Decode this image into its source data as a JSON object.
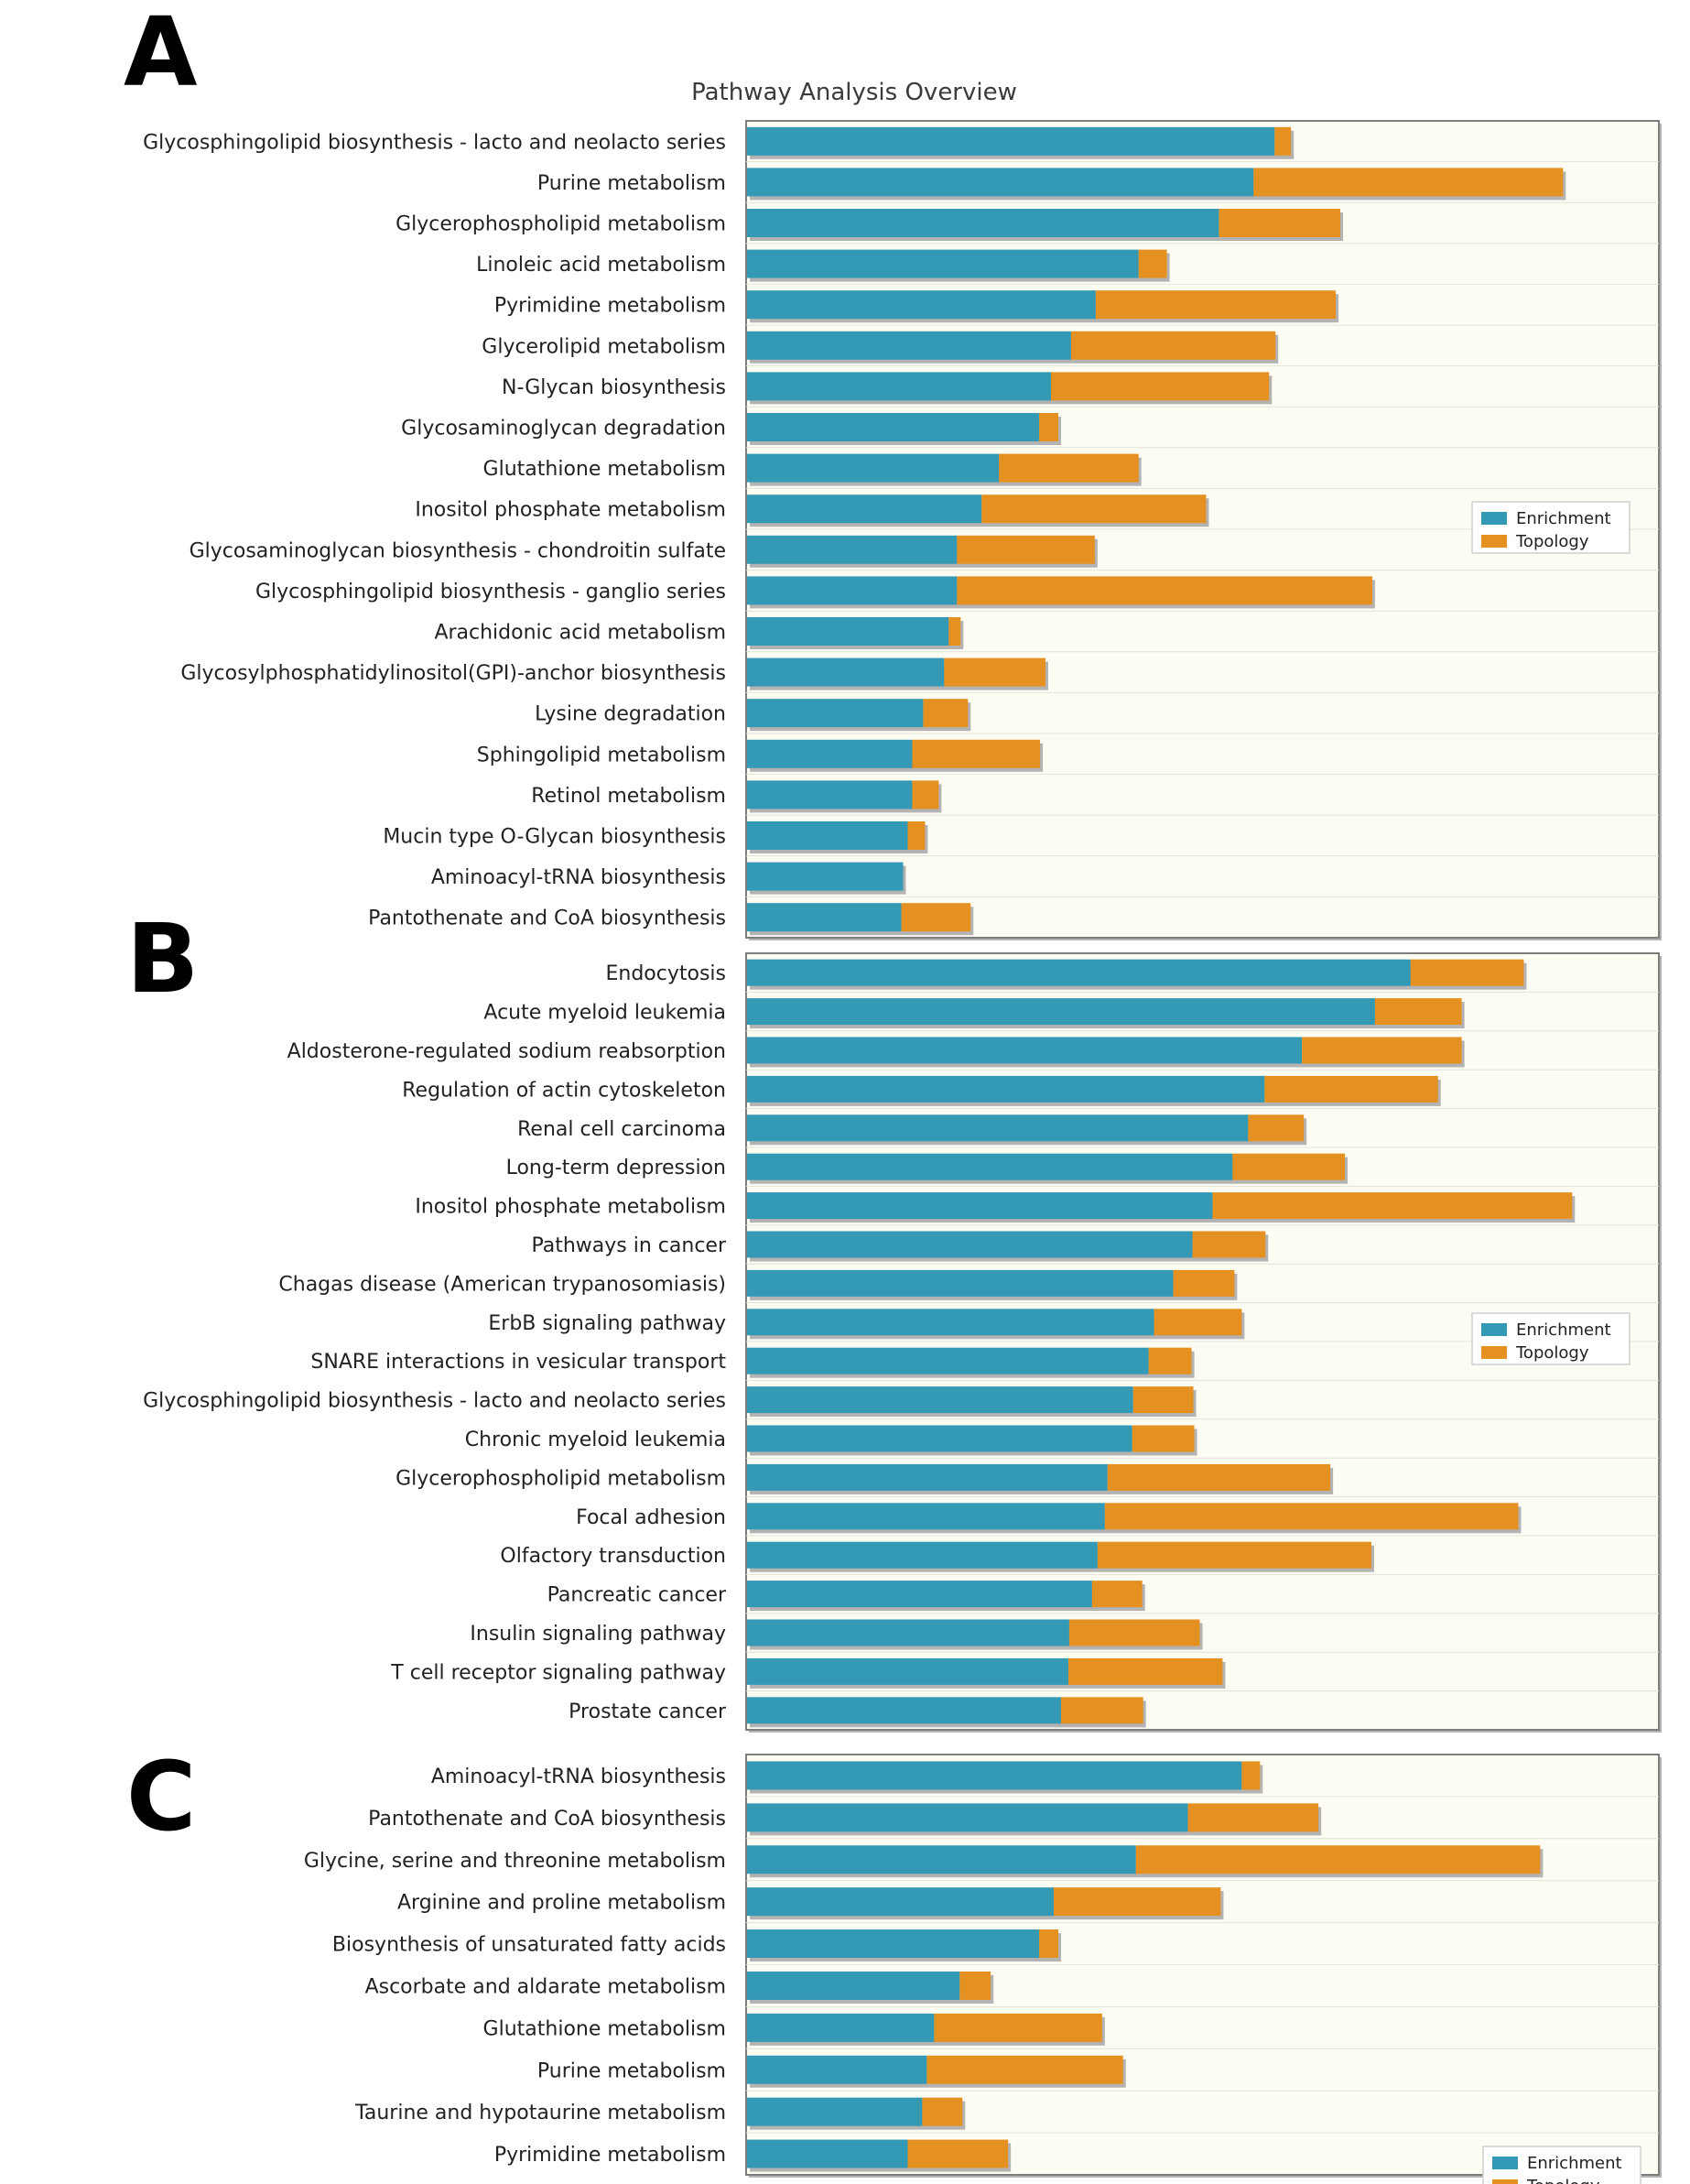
{
  "figure_title": "Pathway Analysis Overview",
  "colors": {
    "enrichment": "#3499b4",
    "topology": "#e59121",
    "plot_background": "#fdfcf3",
    "grid": "#e2e2dc",
    "frame": "#7d7d7d",
    "shadow": "#b3b3b3"
  },
  "chart_data": [
    {
      "panel": "A",
      "type": "bar",
      "orientation": "horizontal",
      "stacked": true,
      "title": "Pathway Analysis Overview",
      "legend": {
        "placement": "right-middle"
      },
      "xlim": [
        0,
        1000
      ],
      "categories": [
        "Glycosphingolipid biosynthesis - lacto and neolacto series",
        "Purine metabolism",
        "Glycerophospholipid metabolism",
        "Linoleic acid metabolism",
        "Pyrimidine metabolism",
        "Glycerolipid metabolism",
        "N-Glycan biosynthesis",
        "Glycosaminoglycan degradation",
        "Glutathione metabolism",
        "Inositol phosphate metabolism",
        "Glycosaminoglycan biosynthesis - chondroitin sulfate",
        "Glycosphingolipid biosynthesis - ganglio series",
        "Arachidonic acid metabolism",
        "Glycosylphosphatidylinositol(GPI)-anchor biosynthesis",
        "Lysine degradation",
        "Sphingolipid metabolism",
        "Retinol metabolism",
        "Mucin type O-Glycan biosynthesis",
        "Aminoacyl-tRNA biosynthesis",
        "Pantothenate and CoA biosynthesis"
      ],
      "series": [
        {
          "name": "Enrichment",
          "values": [
            578,
            555,
            517,
            429,
            382,
            355,
            333,
            320,
            276,
            257,
            230,
            230,
            221,
            216,
            193,
            181,
            181,
            176,
            171,
            169
          ]
        },
        {
          "name": "Topology",
          "values": [
            18,
            339,
            133,
            31,
            263,
            224,
            239,
            21,
            153,
            246,
            151,
            455,
            13,
            111,
            49,
            140,
            29,
            19,
            0,
            76
          ]
        }
      ]
    },
    {
      "panel": "B",
      "type": "bar",
      "orientation": "horizontal",
      "stacked": true,
      "legend": {
        "placement": "right-middle"
      },
      "xlim": [
        0,
        1000
      ],
      "categories": [
        "Endocytosis",
        "Acute myeloid leukemia",
        "Aldosterone-regulated sodium reabsorption",
        "Regulation of actin cytoskeleton",
        "Renal cell carcinoma",
        "Long-term depression",
        "Inositol phosphate metabolism",
        "Pathways in cancer",
        "Chagas disease (American trypanosomiasis)",
        "ErbB signaling pathway",
        "SNARE interactions in vesicular transport",
        "Glycosphingolipid biosynthesis - lacto and neolacto series",
        "Chronic myeloid leukemia",
        "Glycerophospholipid metabolism",
        "Focal adhesion",
        "Olfactory transduction",
        "Pancreatic cancer",
        "Insulin signaling pathway",
        "T cell receptor signaling pathway",
        "Prostate cancer"
      ],
      "series": [
        {
          "name": "Enrichment",
          "values": [
            727,
            688,
            608,
            567,
            549,
            532,
            510,
            488,
            467,
            446,
            440,
            423,
            422,
            395,
            392,
            384,
            378,
            353,
            352,
            344
          ]
        },
        {
          "name": "Topology",
          "values": [
            124,
            95,
            175,
            190,
            61,
            123,
            394,
            80,
            67,
            96,
            47,
            66,
            68,
            244,
            453,
            300,
            55,
            143,
            169,
            90
          ]
        }
      ]
    },
    {
      "panel": "C",
      "type": "bar",
      "orientation": "horizontal",
      "stacked": true,
      "legend": {
        "placement": "right-bottom"
      },
      "xlim": [
        0,
        1000
      ],
      "categories": [
        "Aminoacyl-tRNA biosynthesis",
        "Pantothenate and CoA biosynthesis",
        "Glycine, serine and threonine metabolism",
        "Arginine and proline metabolism",
        "Biosynthesis of unsaturated fatty acids",
        "Ascorbate and aldarate metabolism",
        "Glutathione metabolism",
        "Purine metabolism",
        "Taurine and hypotaurine metabolism",
        "Pyrimidine metabolism"
      ],
      "series": [
        {
          "name": "Enrichment",
          "values": [
            542,
            483,
            426,
            336,
            320,
            233,
            205,
            197,
            192,
            176
          ]
        },
        {
          "name": "Topology",
          "values": [
            20,
            143,
            443,
            183,
            21,
            34,
            184,
            215,
            44,
            110
          ]
        }
      ]
    }
  ]
}
